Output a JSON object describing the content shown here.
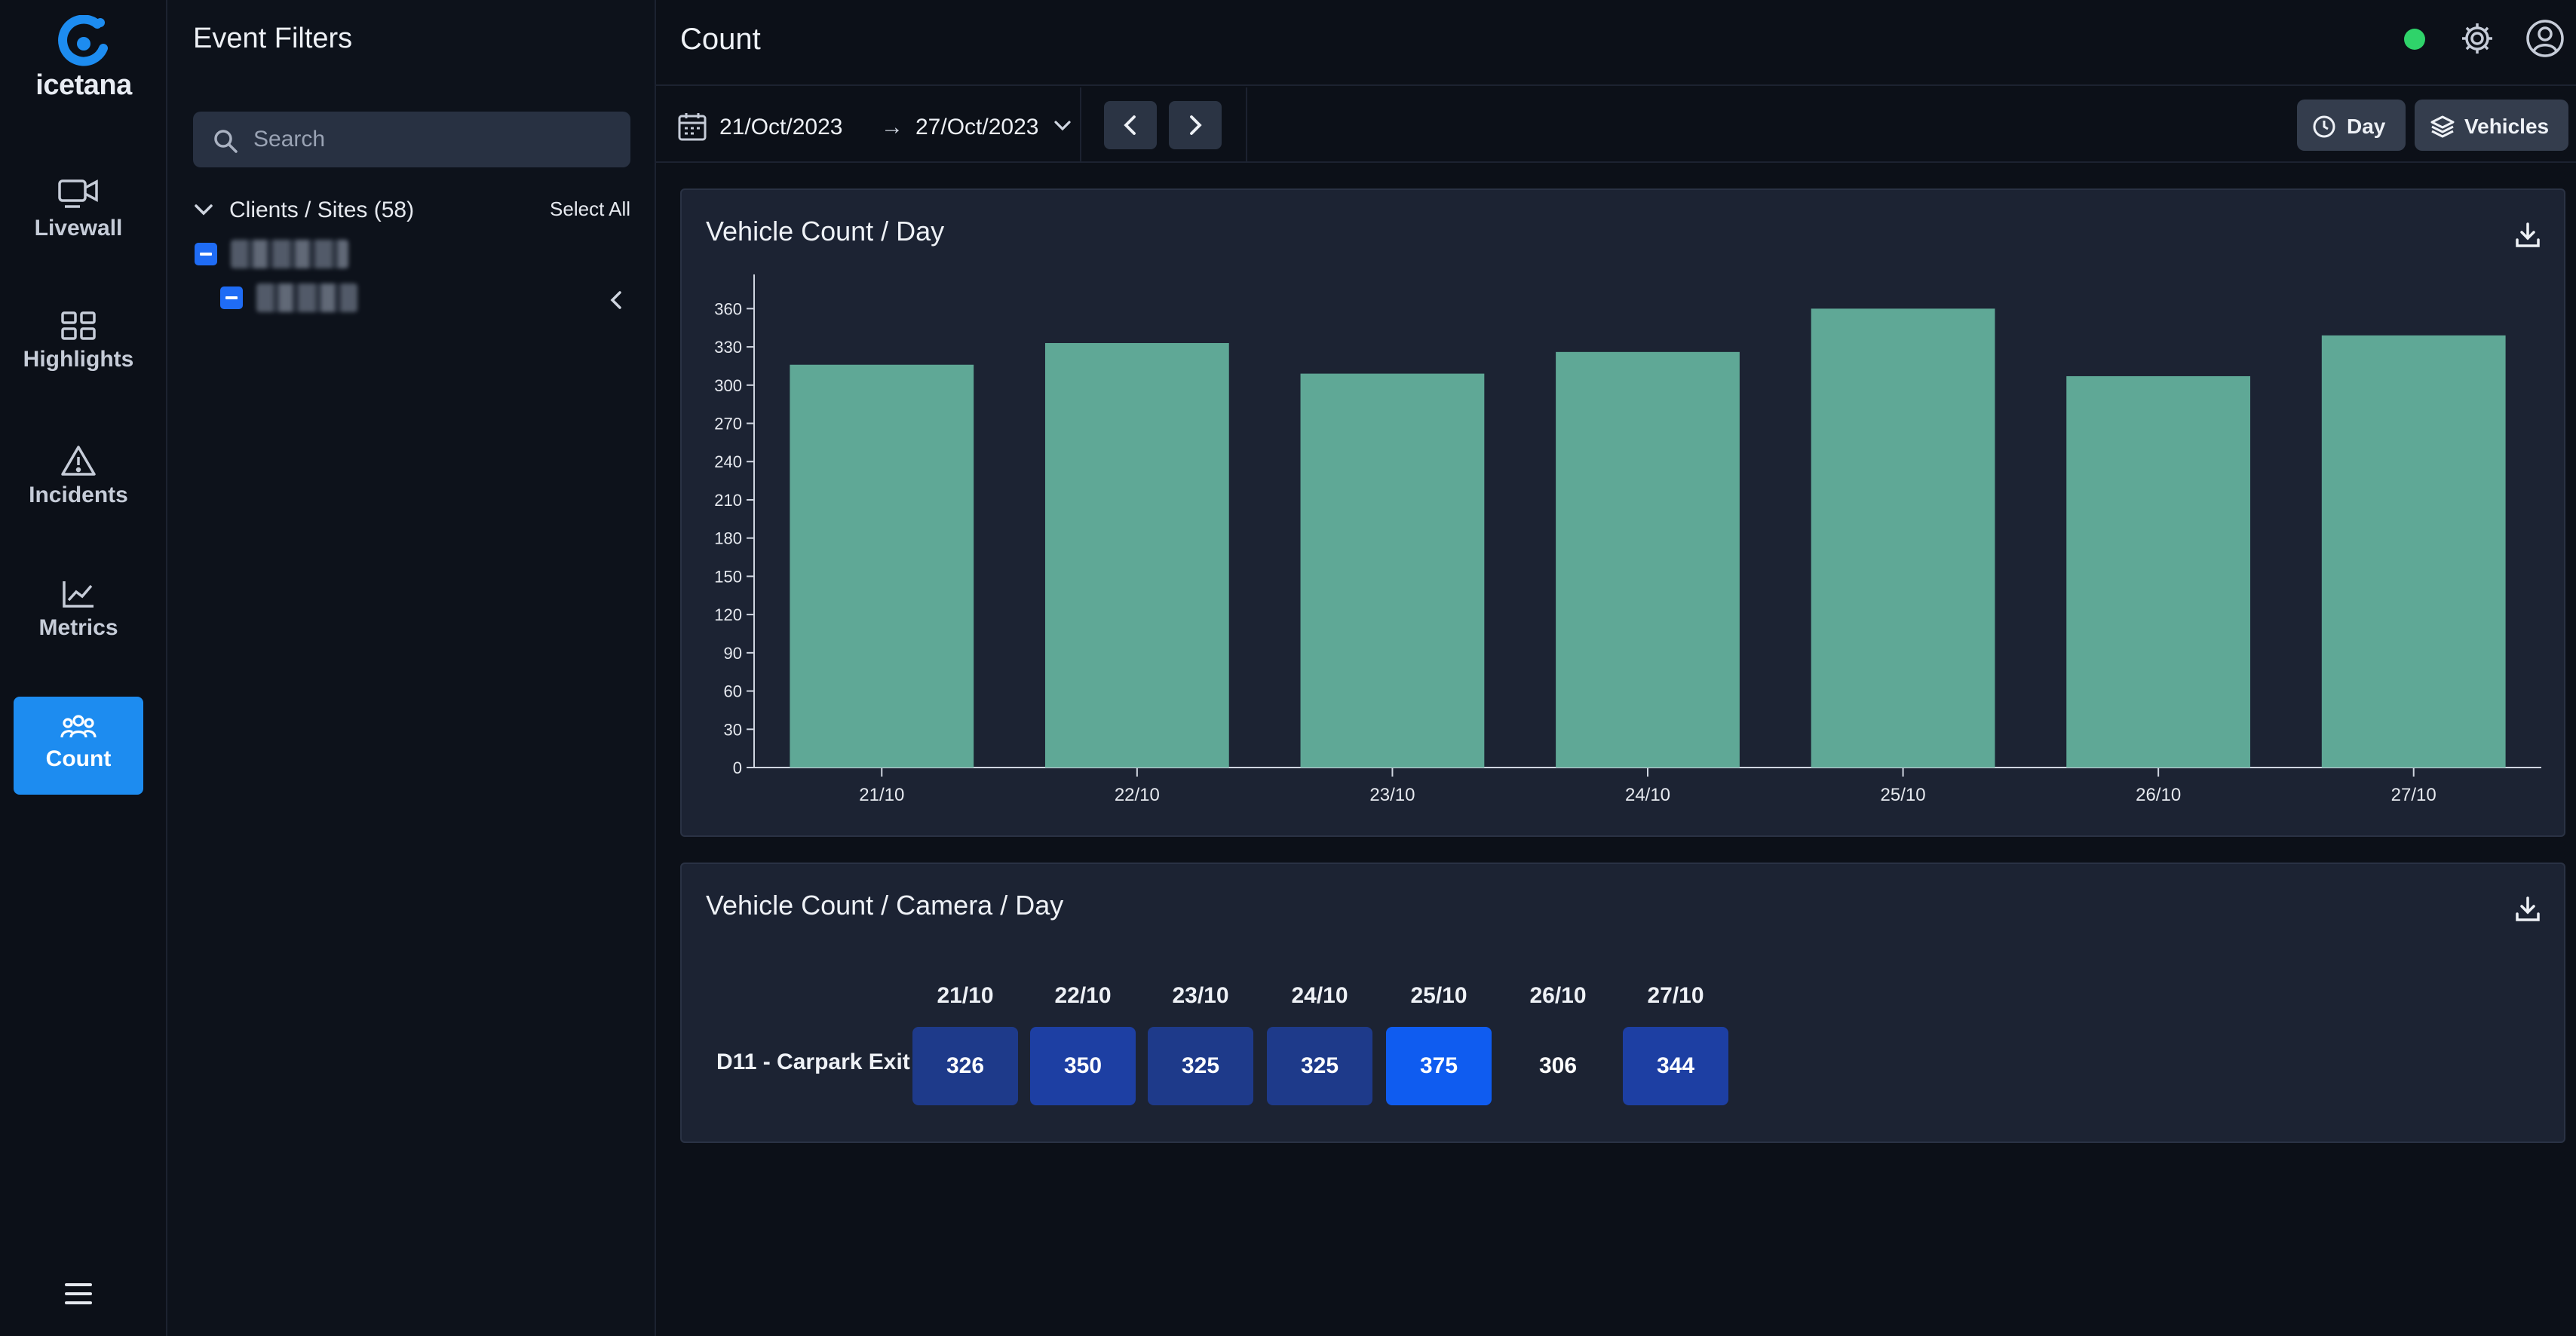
{
  "brand": {
    "name": "icetana",
    "accent": "#1d8cf0"
  },
  "nav": {
    "items": [
      {
        "label": "Livewall",
        "icon": "camera-icon",
        "active": false
      },
      {
        "label": "Highlights",
        "icon": "grid-icon",
        "active": false
      },
      {
        "label": "Incidents",
        "icon": "warning-icon",
        "active": false
      },
      {
        "label": "Metrics",
        "icon": "line-chart-icon",
        "active": false
      },
      {
        "label": "Count",
        "icon": "people-icon",
        "active": true
      }
    ]
  },
  "filters": {
    "title": "Event Filters",
    "search_placeholder": "Search",
    "tree_header": "Clients / Sites (58)",
    "select_all": "Select All"
  },
  "header": {
    "title": "Count",
    "status_color": "#2fd36a"
  },
  "toolbar": {
    "date_from": "21/Oct/2023",
    "arrow": "→",
    "date_to": "27/Oct/2023",
    "period_button": "Day",
    "type_button": "Vehicles"
  },
  "chart_card": {
    "title": "Vehicle Count / Day"
  },
  "chart_data": {
    "type": "bar",
    "categories": [
      "21/10",
      "22/10",
      "23/10",
      "24/10",
      "25/10",
      "26/10",
      "27/10"
    ],
    "values": [
      316,
      333,
      309,
      326,
      360,
      307,
      339
    ],
    "yticks": [
      0,
      30,
      60,
      90,
      120,
      150,
      180,
      210,
      240,
      270,
      300,
      330,
      360
    ],
    "ylim": [
      0,
      375
    ],
    "bar_color": "#5fa896"
  },
  "table_card": {
    "title": "Vehicle Count / Camera / Day",
    "columns": [
      "21/10",
      "22/10",
      "23/10",
      "24/10",
      "25/10",
      "26/10",
      "27/10"
    ],
    "rows": [
      {
        "label": "D11 - Carpark Exit",
        "values": [
          "326",
          "350",
          "325",
          "325",
          "375",
          "306",
          "344"
        ],
        "colors": [
          "#1e3a8a",
          "#1d3fa3",
          "#1e3a8a",
          "#1e3a8a",
          "#0f5cf0",
          "transparent",
          "#1d3fa3"
        ]
      }
    ]
  }
}
